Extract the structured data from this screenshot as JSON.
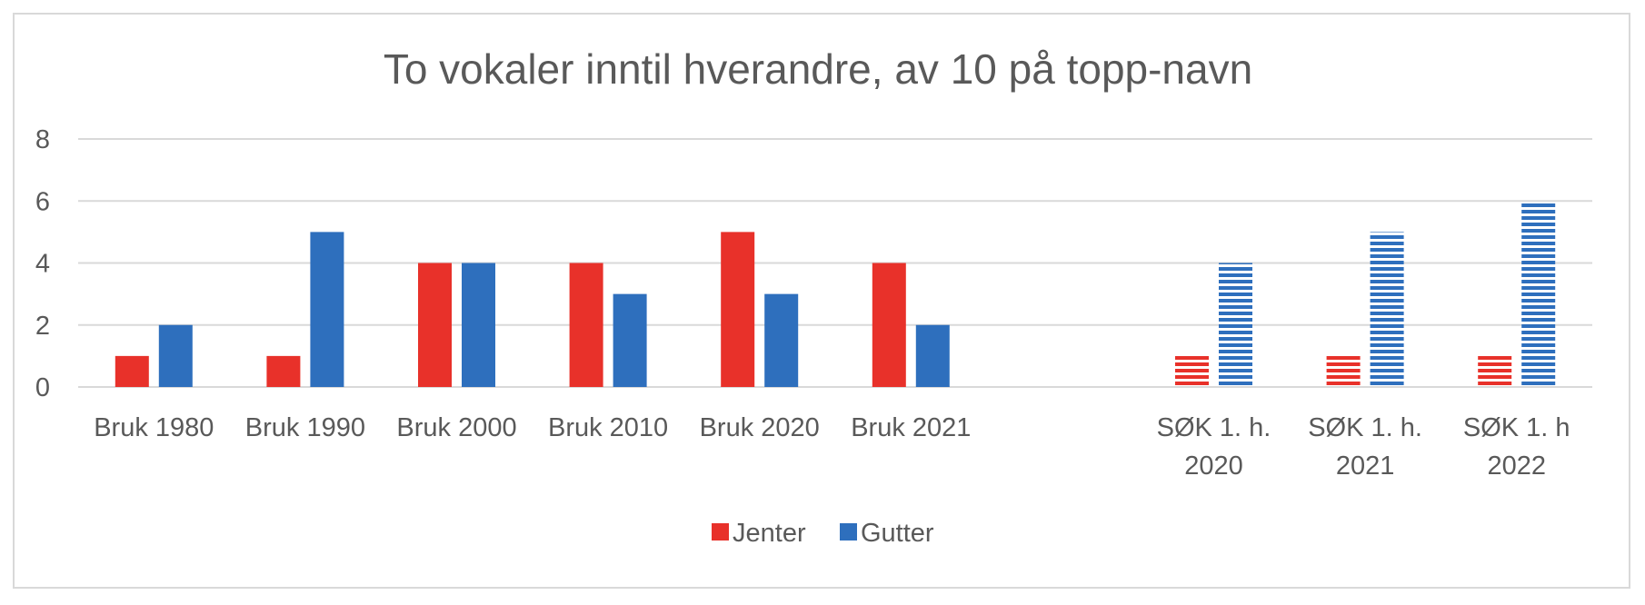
{
  "chart_data": {
    "type": "bar",
    "title": "To vokaler inntil hverandre, av 10 på topp-navn",
    "categories": [
      [
        "Bruk 1980"
      ],
      [
        "Bruk 1990"
      ],
      [
        "Bruk 2000"
      ],
      [
        "Bruk 2010"
      ],
      [
        "Bruk 2020"
      ],
      [
        "Bruk 2021"
      ],
      [
        ""
      ],
      [
        "SØK 1. h.",
        "2020"
      ],
      [
        "SØK 1. h.",
        "2021"
      ],
      [
        "SØK 1. h",
        "2022"
      ]
    ],
    "series": [
      {
        "name": "Jenter",
        "color": "#e8312a",
        "values": [
          1,
          1,
          4,
          4,
          5,
          4,
          null,
          1,
          1,
          1
        ]
      },
      {
        "name": "Gutter",
        "color": "#2e6fbd",
        "values": [
          2,
          5,
          4,
          3,
          3,
          2,
          null,
          4,
          5,
          6
        ]
      }
    ],
    "striped_categories": [
      7,
      8,
      9
    ],
    "ylim": [
      0,
      8
    ],
    "yticks": [
      0,
      2,
      4,
      6,
      8
    ],
    "grid": true,
    "legend": "bottom"
  }
}
